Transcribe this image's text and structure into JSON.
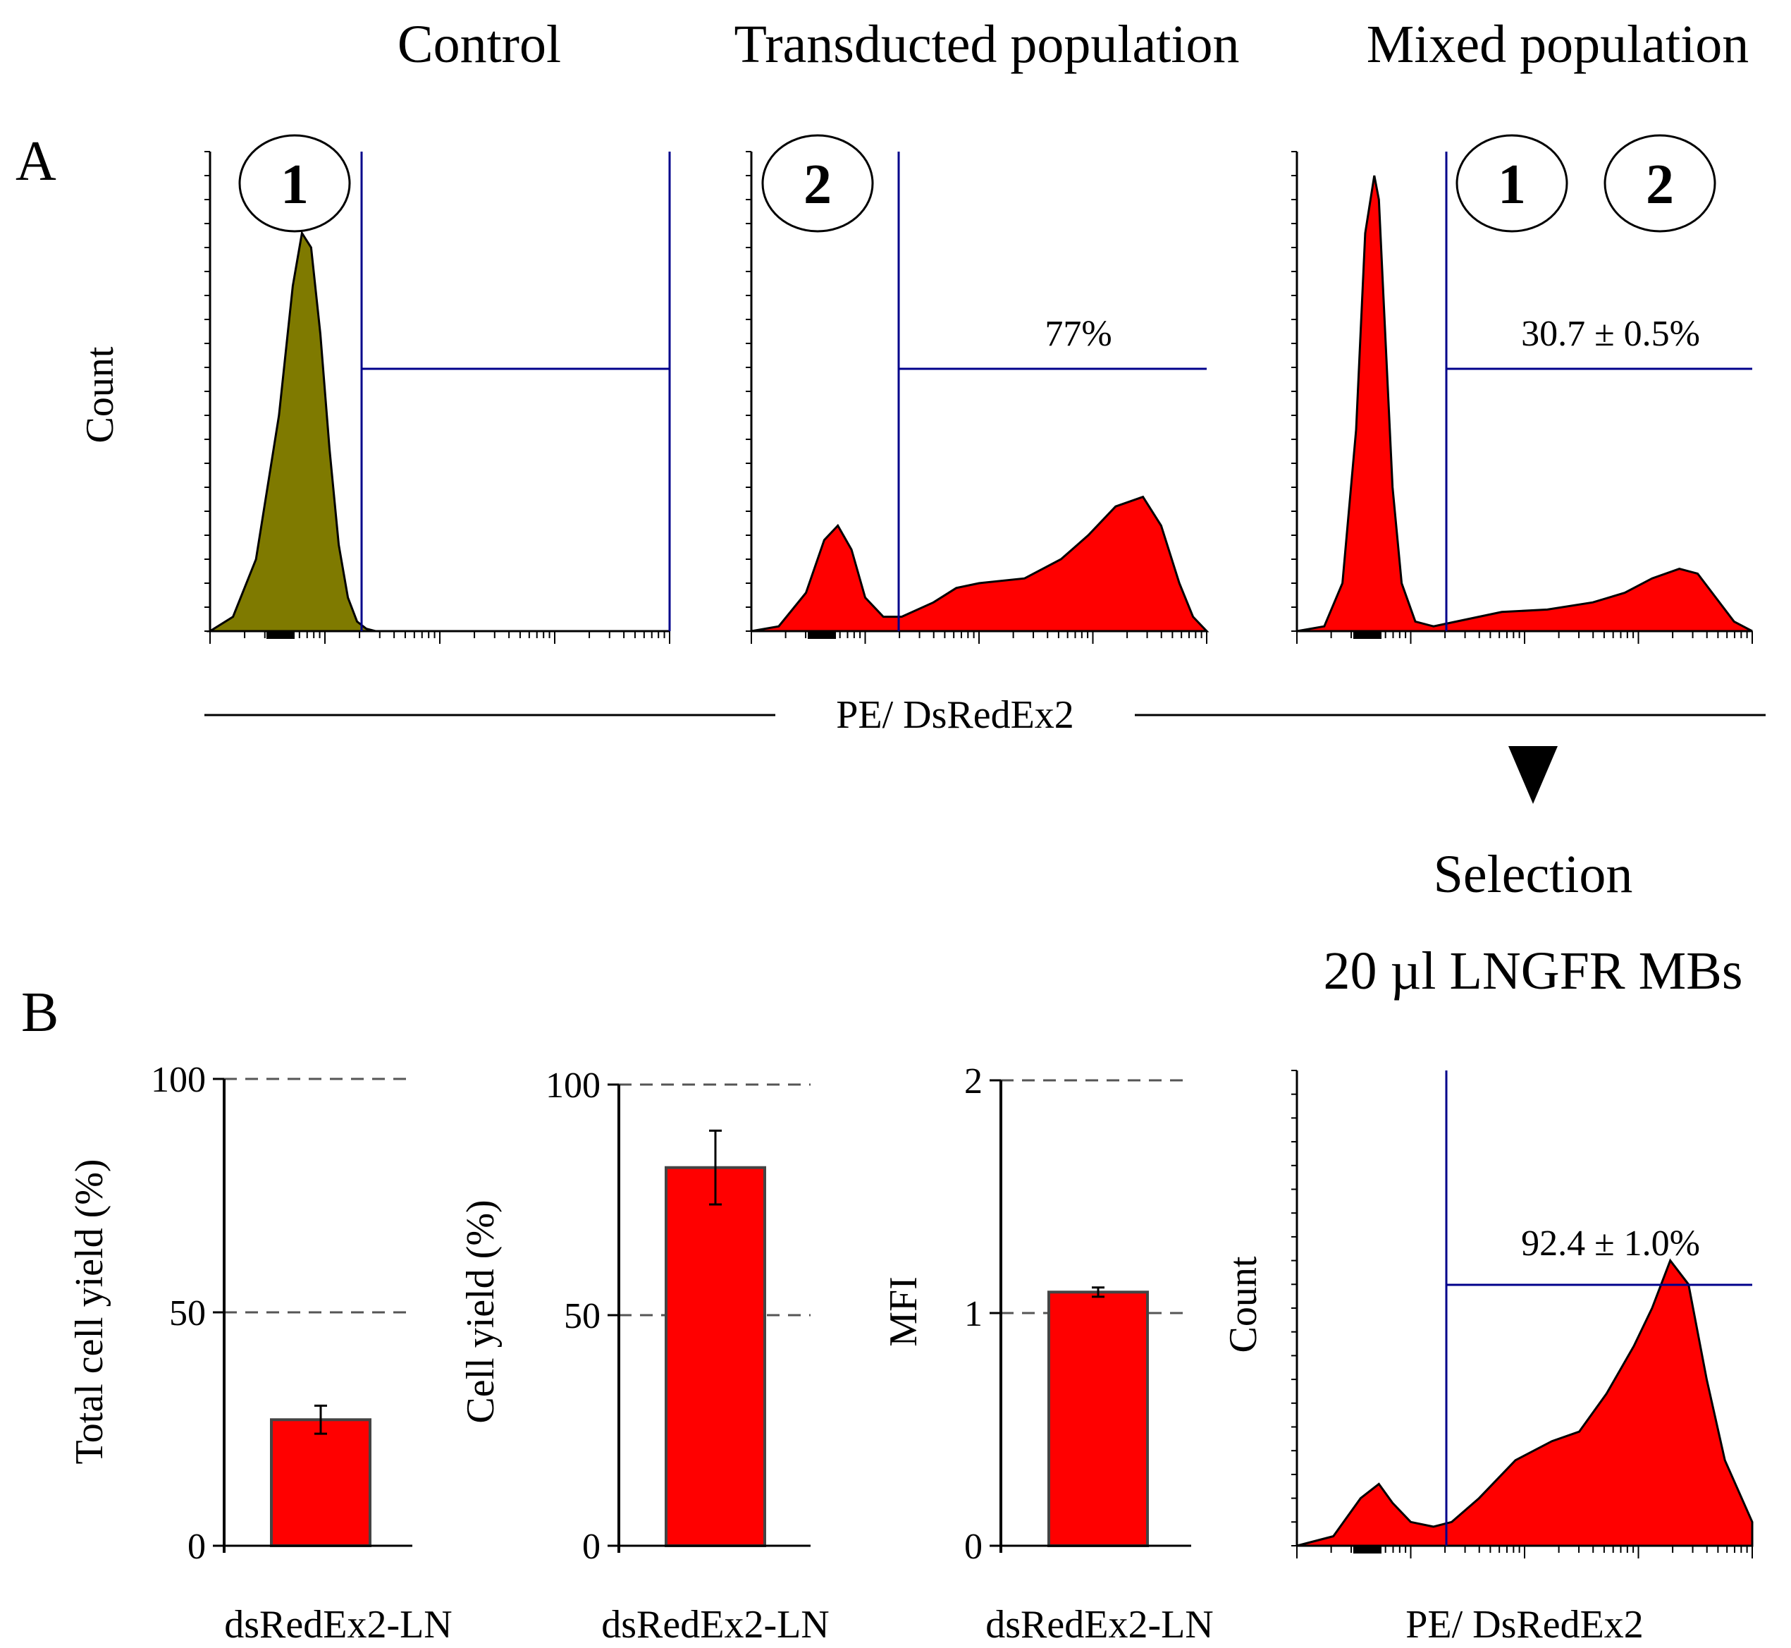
{
  "colors": {
    "control_fill": "#7f7a00",
    "red": "#ff0000",
    "gate": "#00008b",
    "axis": "#000000"
  },
  "panel_letters": [
    "A",
    "B"
  ],
  "column_titles": [
    "Control",
    "Transducted population",
    "Mixed population"
  ],
  "shared_xlabel": "PE/ DsRedEx2",
  "selection_label": "Selection",
  "beads_label": "20 µl LNGFR MBs",
  "chart_data": [
    {
      "id": "A-control",
      "type": "area",
      "title": "Control",
      "ylabel": "Count",
      "xlabel": "PE/ DsRedEx2",
      "population_badges": [
        "1"
      ],
      "gate_label": "",
      "x": [
        0.0,
        0.05,
        0.1,
        0.15,
        0.18,
        0.2,
        0.22,
        0.24,
        0.26,
        0.28,
        0.3,
        0.32,
        0.34,
        0.36
      ],
      "y": [
        0.0,
        0.03,
        0.15,
        0.45,
        0.72,
        0.83,
        0.8,
        0.62,
        0.38,
        0.18,
        0.07,
        0.02,
        0.005,
        0.0
      ]
    },
    {
      "id": "A-transduced",
      "type": "area",
      "title": "Transducted population",
      "ylabel": "Count",
      "xlabel": "PE/ DsRedEx2",
      "population_badges": [
        "2"
      ],
      "gate_label": "77%",
      "x": [
        0.0,
        0.06,
        0.12,
        0.16,
        0.19,
        0.22,
        0.25,
        0.29,
        0.33,
        0.4,
        0.45,
        0.5,
        0.6,
        0.68,
        0.74,
        0.8,
        0.86,
        0.9,
        0.94,
        0.97,
        1.0
      ],
      "y": [
        0.0,
        0.01,
        0.08,
        0.19,
        0.22,
        0.17,
        0.07,
        0.03,
        0.03,
        0.06,
        0.09,
        0.1,
        0.11,
        0.15,
        0.2,
        0.26,
        0.28,
        0.22,
        0.1,
        0.03,
        0.0
      ]
    },
    {
      "id": "A-mixed",
      "type": "area",
      "title": "Mixed population",
      "ylabel": "Count",
      "xlabel": "PE/ DsRedEx2",
      "population_badges": [
        "1",
        "2"
      ],
      "gate_label": "30.7 ± 0.5%",
      "x": [
        0.0,
        0.06,
        0.1,
        0.13,
        0.15,
        0.17,
        0.18,
        0.19,
        0.21,
        0.23,
        0.26,
        0.3,
        0.35,
        0.45,
        0.55,
        0.65,
        0.72,
        0.78,
        0.84,
        0.88,
        0.92,
        0.96,
        1.0
      ],
      "y": [
        0.0,
        0.01,
        0.1,
        0.42,
        0.83,
        0.95,
        0.9,
        0.7,
        0.3,
        0.1,
        0.02,
        0.01,
        0.02,
        0.04,
        0.045,
        0.06,
        0.08,
        0.11,
        0.13,
        0.12,
        0.07,
        0.02,
        0.0
      ]
    },
    {
      "id": "B-total-yield",
      "type": "bar",
      "categories": [
        "dsRedEx2-LN"
      ],
      "values": [
        27
      ],
      "error": [
        3
      ],
      "ylabel": "Total cell yield (%)",
      "ylim": [
        0,
        100
      ],
      "yticks": [
        "0",
        "50",
        "100"
      ]
    },
    {
      "id": "B-cell-yield",
      "type": "bar",
      "categories": [
        "dsRedEx2-LN"
      ],
      "values": [
        82
      ],
      "error": [
        8
      ],
      "ylabel": "Cell yield (%)",
      "ylim": [
        0,
        100
      ],
      "yticks": [
        "0",
        "50",
        "100"
      ]
    },
    {
      "id": "B-mfi",
      "type": "bar",
      "categories": [
        "dsRedEx2-LN"
      ],
      "values": [
        1.09
      ],
      "error": [
        0.02
      ],
      "ylabel": "MFI",
      "ylim": [
        0,
        2
      ],
      "yticks": [
        "0",
        "1",
        "2"
      ]
    },
    {
      "id": "B-selected",
      "type": "area",
      "ylabel": "Count",
      "xlabel": "PE/ DsRedEx2",
      "gate_label": "92.4 ± 1.0%",
      "x": [
        0.0,
        0.08,
        0.14,
        0.18,
        0.21,
        0.25,
        0.3,
        0.34,
        0.4,
        0.48,
        0.56,
        0.62,
        0.68,
        0.74,
        0.78,
        0.82,
        0.86,
        0.9,
        0.94,
        1.0
      ],
      "y": [
        0.0,
        0.02,
        0.1,
        0.13,
        0.09,
        0.05,
        0.04,
        0.05,
        0.1,
        0.18,
        0.22,
        0.24,
        0.32,
        0.42,
        0.5,
        0.6,
        0.55,
        0.35,
        0.18,
        0.05
      ]
    }
  ]
}
